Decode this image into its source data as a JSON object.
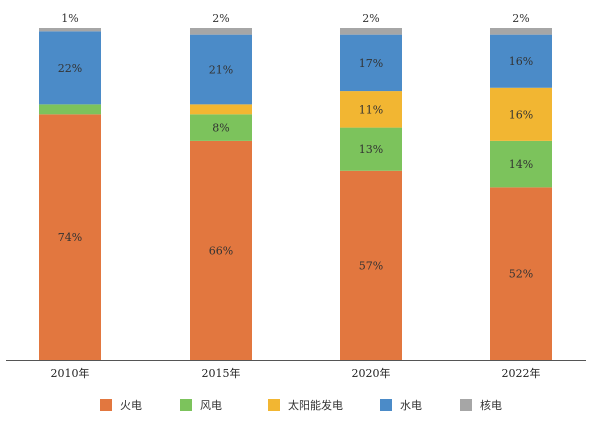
{
  "chart_data": {
    "type": "bar",
    "stacked": true,
    "percent": true,
    "categories": [
      "2010年",
      "2015年",
      "2020年",
      "2022年"
    ],
    "series": [
      {
        "name": "火电",
        "color": "#e2773f",
        "values": [
          74,
          66,
          57,
          52
        ]
      },
      {
        "name": "风电",
        "color": "#7cc35c",
        "values": [
          3,
          8,
          13,
          14
        ]
      },
      {
        "name": "太阳能发电",
        "color": "#f2b632",
        "values": [
          0,
          3,
          11,
          16
        ]
      },
      {
        "name": "水电",
        "color": "#4b8bc8",
        "values": [
          22,
          21,
          17,
          16
        ]
      },
      {
        "name": "核电",
        "color": "#a6a6a6",
        "values": [
          1,
          2,
          2,
          2
        ]
      }
    ],
    "ylim": [
      0,
      100
    ],
    "grid": false,
    "legend_position": "bottom"
  }
}
